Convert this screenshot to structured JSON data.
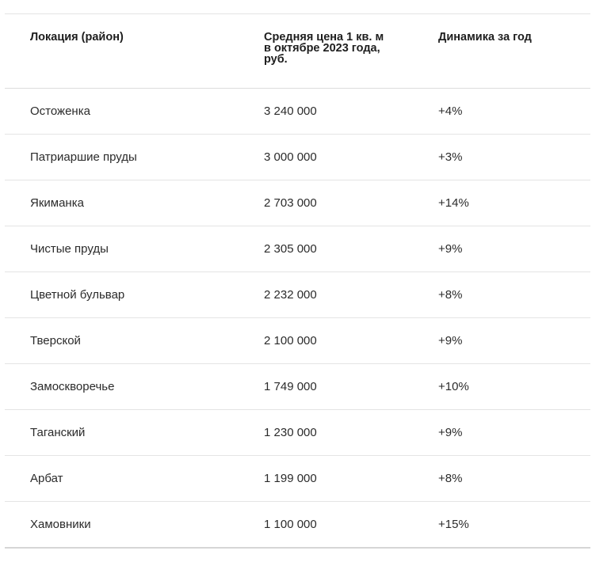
{
  "table": {
    "headers": {
      "location": "Локация (район)",
      "price": "Средняя цена 1 кв. м в октябре 2023 года, руб.",
      "dynamics": "Динамика за год"
    },
    "rows": [
      {
        "location": "Остоженка",
        "price": "3 240 000",
        "dynamics": "+4%"
      },
      {
        "location": "Патриаршие пруды",
        "price": "3 000 000",
        "dynamics": "+3%"
      },
      {
        "location": "Якиманка",
        "price": "2 703 000",
        "dynamics": "+14%"
      },
      {
        "location": "Чистые пруды",
        "price": "2 305 000",
        "dynamics": "+9%"
      },
      {
        "location": "Цветной бульвар",
        "price": "2 232 000",
        "dynamics": "+8%"
      },
      {
        "location": "Тверской",
        "price": "2 100 000",
        "dynamics": "+9%"
      },
      {
        "location": "Замоскворечье",
        "price": "1 749 000",
        "dynamics": "+10%"
      },
      {
        "location": "Таганский",
        "price": "1 230 000",
        "dynamics": "+9%"
      },
      {
        "location": "Арбат",
        "price": "1 199 000",
        "dynamics": "+8%"
      },
      {
        "location": "Хамовники",
        "price": "1 100 000",
        "dynamics": "+15%"
      }
    ]
  }
}
